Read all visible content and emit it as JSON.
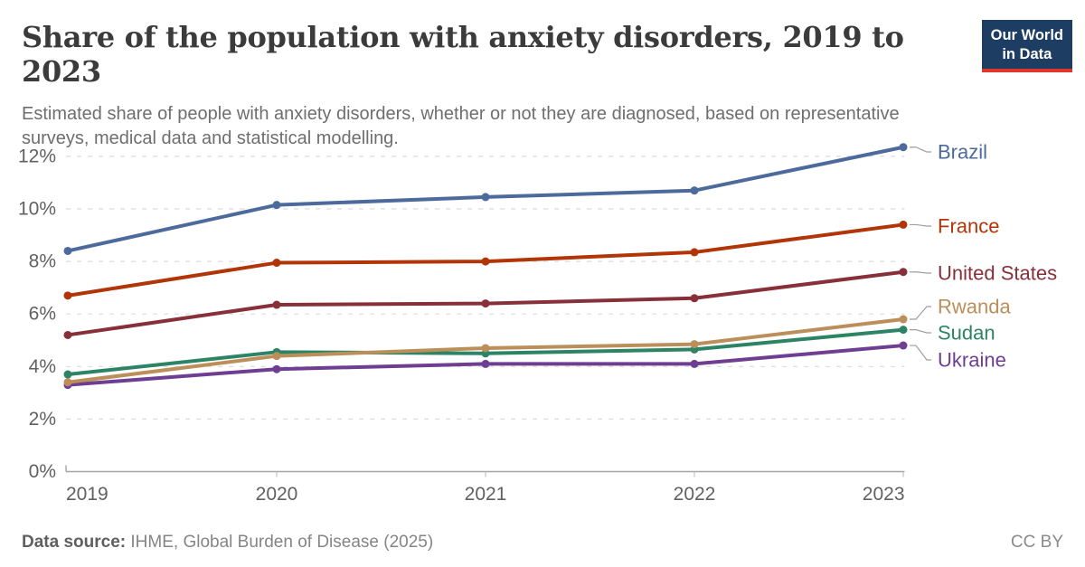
{
  "logo": {
    "line1": "Our World",
    "line2": "in Data"
  },
  "footer": {
    "source_label": "Data source:",
    "source_value": "IHME, Global Burden of Disease (2025)",
    "license": "CC BY"
  },
  "chart_data": {
    "type": "line",
    "title": "Share of the population with anxiety disorders, 2019 to 2023",
    "subtitle": "Estimated share of people with anxiety disorders, whether or not they are diagnosed, based on representative surveys, medical data and statistical modelling.",
    "x": [
      2019,
      2020,
      2021,
      2022,
      2023
    ],
    "y_ticks": [
      0,
      2,
      4,
      6,
      8,
      10,
      12
    ],
    "y_tick_suffix": "%",
    "ylim": [
      0,
      12.75
    ],
    "grid": true,
    "legend_position": "right-of-line-ends",
    "series": [
      {
        "name": "Brazil",
        "color": "#4C6A9C",
        "values": [
          8.4,
          10.15,
          10.45,
          10.7,
          12.35
        ]
      },
      {
        "name": "France",
        "color": "#B13507",
        "values": [
          6.7,
          7.95,
          8.0,
          8.35,
          9.4
        ]
      },
      {
        "name": "United States",
        "color": "#883039",
        "values": [
          5.2,
          6.35,
          6.4,
          6.6,
          7.6
        ]
      },
      {
        "name": "Rwanda",
        "color": "#BC8E5A",
        "values": [
          3.4,
          4.4,
          4.7,
          4.85,
          5.8
        ]
      },
      {
        "name": "Sudan",
        "color": "#2C8465",
        "values": [
          3.7,
          4.55,
          4.5,
          4.65,
          5.4
        ]
      },
      {
        "name": "Ukraine",
        "color": "#6D3E91",
        "values": [
          3.3,
          3.9,
          4.1,
          4.1,
          4.8
        ]
      }
    ],
    "xlabel": "",
    "ylabel": ""
  }
}
